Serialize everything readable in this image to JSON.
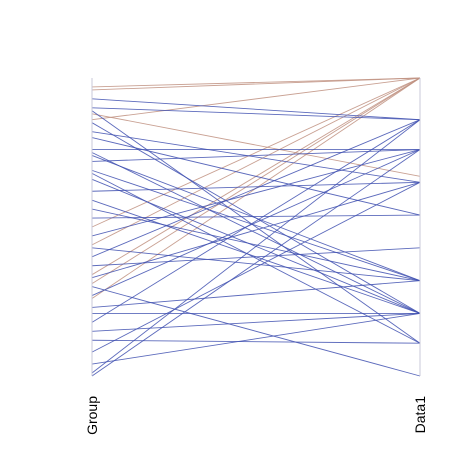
{
  "chart_data": {
    "type": "parallel_coordinates",
    "axes": [
      "Group",
      "Data1"
    ],
    "ylim": [
      0,
      1
    ],
    "highlight_color": "#c09080",
    "base_color": "#4050b0",
    "lines": [
      {
        "group": 0.97,
        "data1": 1.0,
        "highlight": true
      },
      {
        "group": 0.96,
        "data1": 1.0,
        "highlight": true
      },
      {
        "group": 0.88,
        "data1": 0.67,
        "highlight": true
      },
      {
        "group": 0.86,
        "data1": 1.0,
        "highlight": true
      },
      {
        "group": 0.5,
        "data1": 1.0,
        "highlight": true
      },
      {
        "group": 0.44,
        "data1": 1.0,
        "highlight": true
      },
      {
        "group": 0.34,
        "data1": 1.0,
        "highlight": true
      },
      {
        "group": 0.31,
        "data1": 1.0,
        "highlight": true
      },
      {
        "group": 0.26,
        "data1": 1.0,
        "highlight": true
      },
      {
        "group": 0.93,
        "data1": 0.86,
        "highlight": false
      },
      {
        "group": 0.9,
        "data1": 0.86,
        "highlight": false
      },
      {
        "group": 0.89,
        "data1": 0.11,
        "highlight": false
      },
      {
        "group": 0.85,
        "data1": 0.21,
        "highlight": false
      },
      {
        "group": 0.82,
        "data1": 0.65,
        "highlight": false
      },
      {
        "group": 0.8,
        "data1": 0.54,
        "highlight": false
      },
      {
        "group": 0.76,
        "data1": 0.76,
        "highlight": false
      },
      {
        "group": 0.75,
        "data1": 0.21,
        "highlight": false
      },
      {
        "group": 0.74,
        "data1": 0.32,
        "highlight": false
      },
      {
        "group": 0.72,
        "data1": 0.76,
        "highlight": false
      },
      {
        "group": 0.69,
        "data1": 0.32,
        "highlight": false
      },
      {
        "group": 0.68,
        "data1": 0.11,
        "highlight": false
      },
      {
        "group": 0.66,
        "data1": 0.21,
        "highlight": false
      },
      {
        "group": 0.62,
        "data1": 0.65,
        "highlight": false
      },
      {
        "group": 0.59,
        "data1": 0.21,
        "highlight": false
      },
      {
        "group": 0.56,
        "data1": 0.32,
        "highlight": false
      },
      {
        "group": 0.53,
        "data1": 0.54,
        "highlight": false
      },
      {
        "group": 0.47,
        "data1": 0.76,
        "highlight": false
      },
      {
        "group": 0.43,
        "data1": 0.32,
        "highlight": false
      },
      {
        "group": 0.4,
        "data1": 0.86,
        "highlight": false
      },
      {
        "group": 0.37,
        "data1": 0.43,
        "highlight": false
      },
      {
        "group": 0.33,
        "data1": 0.65,
        "highlight": false
      },
      {
        "group": 0.3,
        "data1": 0.0,
        "highlight": false
      },
      {
        "group": 0.27,
        "data1": 0.76,
        "highlight": false
      },
      {
        "group": 0.23,
        "data1": 0.32,
        "highlight": false
      },
      {
        "group": 0.21,
        "data1": 0.21,
        "highlight": false
      },
      {
        "group": 0.18,
        "data1": 0.86,
        "highlight": false
      },
      {
        "group": 0.15,
        "data1": 0.21,
        "highlight": false
      },
      {
        "group": 0.12,
        "data1": 0.11,
        "highlight": false
      },
      {
        "group": 0.08,
        "data1": 0.65,
        "highlight": false
      },
      {
        "group": 0.04,
        "data1": 0.21,
        "highlight": false
      },
      {
        "group": 0.01,
        "data1": 0.86,
        "highlight": false
      },
      {
        "group": 0.0,
        "data1": 0.76,
        "highlight": false
      }
    ]
  }
}
